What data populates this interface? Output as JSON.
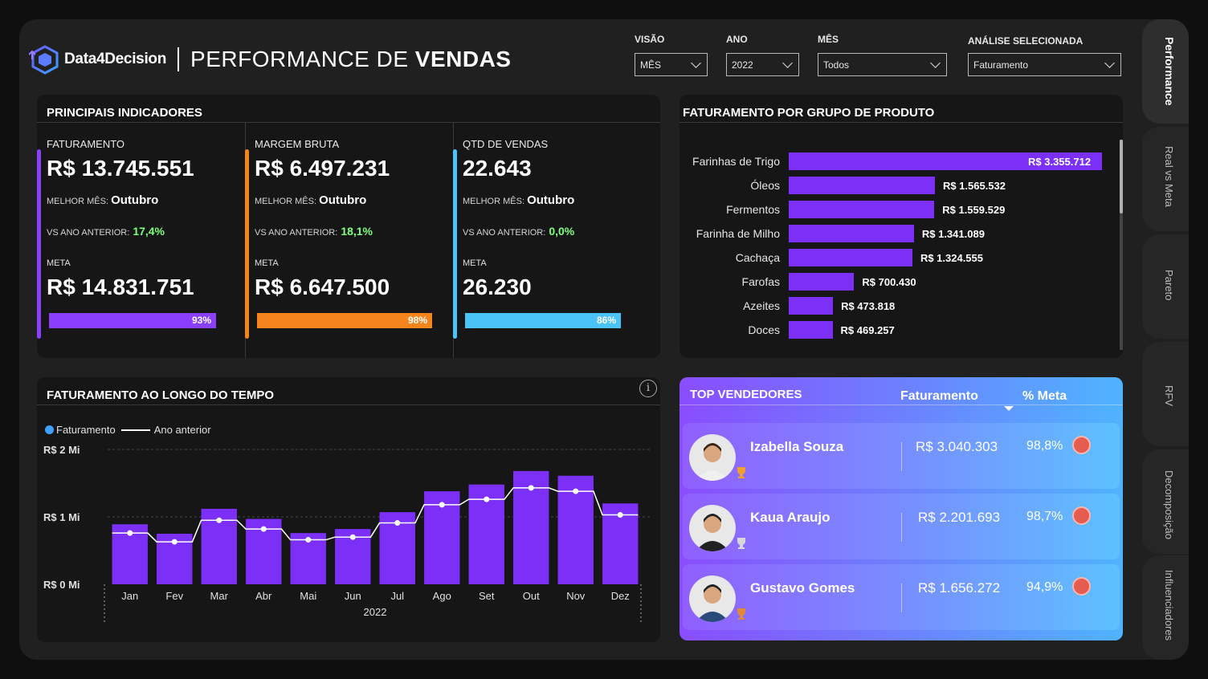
{
  "header": {
    "brand": "Data4Decision",
    "title_light": "PERFORMANCE DE ",
    "title_bold": "VENDAS"
  },
  "filters": [
    {
      "label": "VISÃO",
      "value": "MÊS"
    },
    {
      "label": "ANO",
      "value": "2022"
    },
    {
      "label": "MÊS",
      "value": "Todos"
    },
    {
      "label": "ANÁLISE SELECIONADA",
      "value": "Faturamento"
    }
  ],
  "kpis": {
    "title": "PRINCIPAIS INDICADORES",
    "best_label": "MELHOR MÊS:",
    "vs_label": "VS ANO ANTERIOR:",
    "meta_label": "META",
    "items": [
      {
        "label": "FATURAMENTO",
        "value": "R$ 13.745.551",
        "best": "Outubro",
        "vs": "17,4%",
        "meta": "R$ 14.831.751",
        "progress_label": "93%",
        "progress": 0.93,
        "color": "#8a3ffc"
      },
      {
        "label": "MARGEM BRUTA",
        "value": "R$ 6.497.231",
        "best": "Outubro",
        "vs": "18,1%",
        "meta": "R$ 6.647.500",
        "progress_label": "98%",
        "progress": 0.98,
        "color": "#f4841c"
      },
      {
        "label": "QTD DE VENDAS",
        "value": "22.643",
        "best": "Outubro",
        "vs": "0,0%",
        "meta": "26.230",
        "progress_label": "86%",
        "progress": 0.86,
        "color": "#4bc3f7"
      }
    ]
  },
  "products": {
    "title": "FATURAMENTO POR GRUPO DE PRODUTO",
    "items": [
      {
        "label": "Farinhas de Trigo",
        "value": 3355712,
        "text": "R$ 3.355.712"
      },
      {
        "label": "Óleos",
        "value": 1565532,
        "text": "R$ 1.565.532"
      },
      {
        "label": "Fermentos",
        "value": 1559529,
        "text": "R$ 1.559.529"
      },
      {
        "label": "Farinha de Milho",
        "value": 1341089,
        "text": "R$ 1.341.089"
      },
      {
        "label": "Cachaça",
        "value": 1324555,
        "text": "R$ 1.324.555"
      },
      {
        "label": "Farofas",
        "value": 700430,
        "text": "R$ 700.430"
      },
      {
        "label": "Azeites",
        "value": 473818,
        "text": "R$ 473.818"
      },
      {
        "label": "Doces",
        "value": 469257,
        "text": "R$ 469.257"
      }
    ]
  },
  "timeline": {
    "title": "FATURAMENTO AO LONGO DO TEMPO",
    "info_icon": "info-icon",
    "legend": {
      "current": "Faturamento",
      "previous": "Ano anterior"
    }
  },
  "chart_data": {
    "type": "bar",
    "title": "FATURAMENTO AO LONGO DO TEMPO",
    "xlabel": "2022",
    "ylabel": "",
    "categories": [
      "Jan",
      "Fev",
      "Mar",
      "Abr",
      "Mai",
      "Jun",
      "Jul",
      "Ago",
      "Set",
      "Out",
      "Nov",
      "Dez"
    ],
    "series": [
      {
        "name": "Faturamento",
        "values": [
          0.89,
          0.75,
          1.12,
          0.97,
          0.76,
          0.82,
          1.07,
          1.38,
          1.48,
          1.68,
          1.61,
          1.2
        ]
      },
      {
        "name": "Ano anterior",
        "values": [
          0.76,
          0.63,
          0.95,
          0.82,
          0.66,
          0.7,
          0.91,
          1.18,
          1.26,
          1.43,
          1.38,
          1.03
        ]
      }
    ],
    "yticks": [
      {
        "value": 0,
        "label": "R$ 0 Mi"
      },
      {
        "value": 1,
        "label": "R$ 1 Mi"
      },
      {
        "value": 2,
        "label": "R$ 2 Mi"
      }
    ],
    "ylim": [
      0,
      2
    ]
  },
  "sellers": {
    "title": "TOP VENDEDORES",
    "col_fat": "Faturamento",
    "col_meta": "% Meta",
    "items": [
      {
        "name": "Izabella Souza",
        "fat": "R$ 3.040.303",
        "pct": "98,8%",
        "trophy": "#f0a030"
      },
      {
        "name": "Kaua Araujo",
        "fat": "R$ 2.201.693",
        "pct": "98,7%",
        "trophy": "#d8d8d8"
      },
      {
        "name": "Gustavo Gomes",
        "fat": "R$ 1.656.272",
        "pct": "94,9%",
        "trophy": "#e08a3a"
      }
    ]
  },
  "tabs": [
    "Performance",
    "Real vs Meta",
    "Pareto",
    "RFV",
    "Decomposição",
    "Influenciadores"
  ]
}
